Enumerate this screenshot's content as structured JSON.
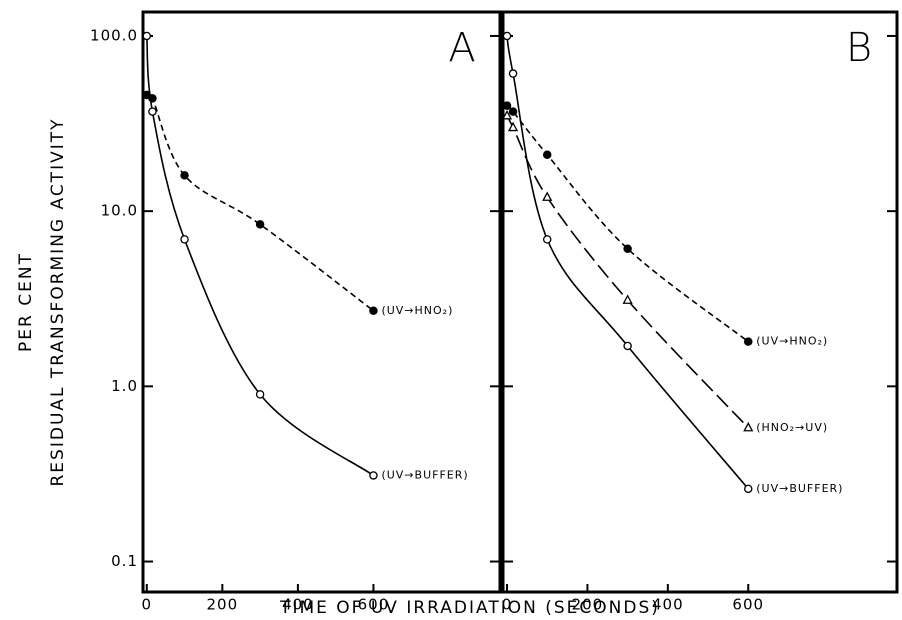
{
  "figure": {
    "xlabel": "TIME OF UV IRRADIATION (SECONDS)",
    "ylabel": [
      "PER CENT",
      "RESIDUAL TRANSFORMING ACTIVITY"
    ]
  },
  "chart_data": [
    {
      "type": "line",
      "title": "A",
      "log_y": true,
      "x": [
        0,
        15,
        100,
        300,
        600
      ],
      "xlim": [
        -10,
        935
      ],
      "xticks": [
        0,
        200,
        400,
        600
      ],
      "ylim": [
        0.067,
        137
      ],
      "yticks": [
        0.1,
        {
          "value": 1,
          "label": "1.0"
        },
        {
          "value": 10,
          "label": "10.0"
        },
        {
          "value": 100,
          "label": "100.0"
        }
      ],
      "series": [
        {
          "name": "(UV→HNO₂)",
          "color": "#000000",
          "marker": "circle",
          "filled": true,
          "linestyle": "dashed",
          "values": [
            46,
            44,
            16,
            8.4,
            2.7
          ]
        },
        {
          "name": "(UV→BUFFER)",
          "color": "#000000",
          "marker": "circle",
          "filled": false,
          "linestyle": "solid",
          "values": [
            100,
            37,
            6.9,
            0.9,
            0.31
          ]
        }
      ]
    },
    {
      "type": "line",
      "title": "B",
      "log_y": true,
      "x": [
        0,
        15,
        100,
        300,
        600
      ],
      "xlim": [
        -10,
        970
      ],
      "xticks": [
        0,
        200,
        400,
        600
      ],
      "ylim": [
        0.067,
        137
      ],
      "yticks": [
        0.1,
        1,
        10,
        100
      ],
      "series": [
        {
          "name": "(UV→HNO₂)",
          "color": "#000000",
          "marker": "circle",
          "filled": true,
          "linestyle": "dashed",
          "values": [
            40,
            37,
            21,
            6.1,
            1.8
          ]
        },
        {
          "name": "(HNO₂→UV)",
          "color": "#000000",
          "marker": "triangle",
          "filled": false,
          "linestyle": "long-dashed",
          "values": [
            35,
            30,
            12,
            3.1,
            0.58
          ]
        },
        {
          "name": "(UV→BUFFER)",
          "color": "#000000",
          "marker": "circle",
          "filled": false,
          "linestyle": "solid",
          "values": [
            100,
            61,
            6.9,
            1.7,
            0.26
          ]
        }
      ]
    }
  ]
}
